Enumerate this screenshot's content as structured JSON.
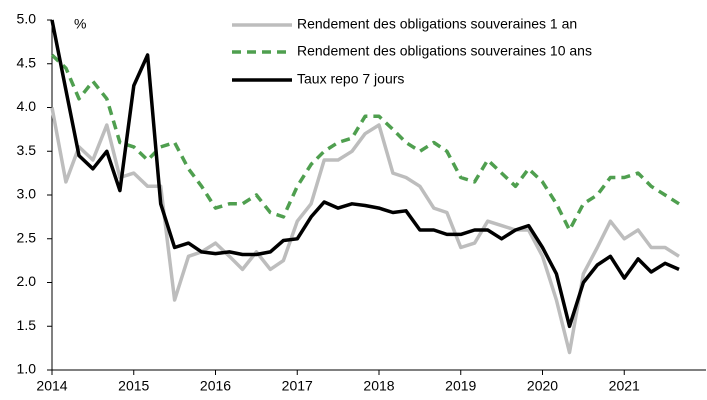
{
  "chart_data": {
    "type": "line",
    "annotation": "%",
    "x": [
      2014.0,
      2014.17,
      2014.33,
      2014.5,
      2014.67,
      2014.83,
      2015.0,
      2015.17,
      2015.33,
      2015.5,
      2015.67,
      2015.83,
      2016.0,
      2016.17,
      2016.33,
      2016.5,
      2016.67,
      2016.83,
      2017.0,
      2017.17,
      2017.33,
      2017.5,
      2017.67,
      2017.83,
      2018.0,
      2018.17,
      2018.33,
      2018.5,
      2018.67,
      2018.83,
      2019.0,
      2019.17,
      2019.33,
      2019.5,
      2019.67,
      2019.83,
      2020.0,
      2020.17,
      2020.33,
      2020.5,
      2020.67,
      2020.83,
      2021.0,
      2021.17,
      2021.33,
      2021.5,
      2021.67
    ],
    "series": [
      {
        "name": "Rendement des obligations souveraines 1 an",
        "color": "#bdbdbd",
        "dash": false,
        "values": [
          4.0,
          3.15,
          3.55,
          3.4,
          3.8,
          3.2,
          3.25,
          3.1,
          3.1,
          1.8,
          2.3,
          2.35,
          2.45,
          2.3,
          2.15,
          2.35,
          2.15,
          2.25,
          2.7,
          2.9,
          3.4,
          3.4,
          3.5,
          3.7,
          3.8,
          3.25,
          3.2,
          3.1,
          2.85,
          2.8,
          2.4,
          2.45,
          2.7,
          2.65,
          2.6,
          2.6,
          2.3,
          1.8,
          1.2,
          2.1,
          2.4,
          2.7,
          2.5,
          2.6,
          2.4,
          2.4,
          2.3
        ]
      },
      {
        "name": "Rendement des obligations souveraines 10 ans",
        "color": "#4f9f4f",
        "dash": true,
        "values": [
          4.6,
          4.45,
          4.1,
          4.3,
          4.1,
          3.6,
          3.55,
          3.4,
          3.55,
          3.6,
          3.3,
          3.1,
          2.85,
          2.9,
          2.9,
          3.0,
          2.8,
          2.75,
          3.1,
          3.35,
          3.5,
          3.6,
          3.65,
          3.9,
          3.9,
          3.75,
          3.6,
          3.5,
          3.6,
          3.5,
          3.2,
          3.15,
          3.4,
          3.25,
          3.1,
          3.3,
          3.15,
          2.9,
          2.6,
          2.9,
          3.0,
          3.2,
          3.2,
          3.25,
          3.1,
          3.0,
          2.9
        ]
      },
      {
        "name": "Taux repo 7 jours",
        "color": "#000000",
        "dash": false,
        "values": [
          5.0,
          4.2,
          3.45,
          3.3,
          3.5,
          3.05,
          4.25,
          4.6,
          2.9,
          2.4,
          2.45,
          2.35,
          2.33,
          2.35,
          2.32,
          2.32,
          2.35,
          2.48,
          2.5,
          2.75,
          2.92,
          2.85,
          2.9,
          2.88,
          2.85,
          2.8,
          2.82,
          2.6,
          2.6,
          2.55,
          2.55,
          2.6,
          2.6,
          2.5,
          2.6,
          2.65,
          2.4,
          2.1,
          1.5,
          2.0,
          2.2,
          2.3,
          2.05,
          2.27,
          2.12,
          2.22,
          2.15
        ]
      }
    ],
    "xlim": [
      2014,
      2022
    ],
    "xticks": [
      2014,
      2015,
      2016,
      2017,
      2018,
      2019,
      2020,
      2021
    ],
    "ylim": [
      1.0,
      5.0
    ],
    "yticks": [
      {
        "value": 1.0,
        "label": "1.0"
      },
      1.5,
      {
        "value": 2.0,
        "label": "2.0"
      },
      2.5,
      {
        "value": 3.0,
        "label": "3.0"
      },
      3.5,
      {
        "value": 4.0,
        "label": "4.0"
      },
      4.5,
      {
        "value": 5.0,
        "label": "5.0"
      }
    ],
    "legend": "top-right"
  }
}
